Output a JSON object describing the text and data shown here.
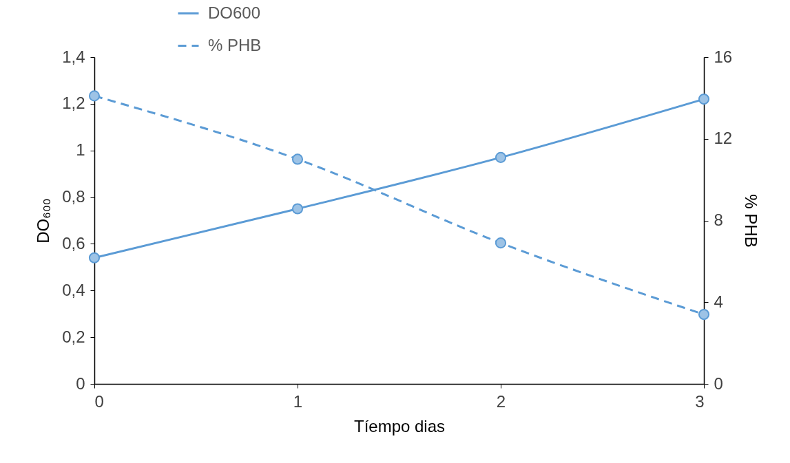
{
  "chart_data": {
    "type": "line",
    "xlabel": "Tíempo dias",
    "ylabel": "DO₆₀₀",
    "y2label": "% PHB",
    "x": [
      0,
      1,
      2,
      3
    ],
    "xlim": [
      0,
      3
    ],
    "xticks": [
      0,
      1,
      2,
      3
    ],
    "ylim": [
      0,
      1.4
    ],
    "yticks": [
      0,
      {
        "value": 0.2,
        "label": "0,2"
      },
      {
        "value": 0.4,
        "label": "0,4"
      },
      {
        "value": 0.6,
        "label": "0,6"
      },
      {
        "value": 0.8,
        "label": "0,8"
      },
      1,
      {
        "value": 1.2,
        "label": "1,2"
      },
      {
        "value": 1.4,
        "label": "1,4"
      }
    ],
    "y2lim": [
      0,
      16
    ],
    "y2ticks": [
      0,
      4,
      8,
      12,
      16
    ],
    "series": [
      {
        "name": "DO600",
        "color": "#5b9bd5",
        "values": [
          0.54,
          0.75,
          0.97,
          1.22
        ],
        "line_style": "solid"
      },
      {
        "name": "% PHB",
        "color": "#5b9bd5",
        "values": [
          14.1,
          11.0,
          6.9,
          3.4
        ],
        "line_style": "dashed",
        "axis": "y2"
      }
    ],
    "marker": "circle",
    "legend": "top",
    "grid": false
  }
}
